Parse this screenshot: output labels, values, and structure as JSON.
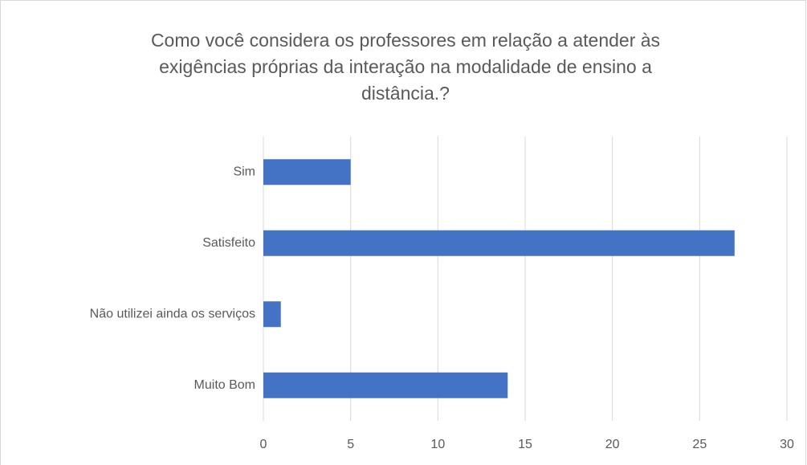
{
  "chart_data": {
    "type": "bar",
    "orientation": "horizontal",
    "title": "Como você considera os professores em relação a  atender às exigências próprias da interação na modalidade de ensino a distância.?",
    "categories": [
      "Sim",
      "Satisfeito",
      "Não utilizei ainda os serviços",
      "Muito Bom"
    ],
    "values": [
      5,
      27,
      1,
      14
    ],
    "color": "#4472c4",
    "xlim": [
      0,
      30
    ],
    "xticks": [
      0,
      5,
      10,
      15,
      20,
      25,
      30
    ],
    "grid": true
  }
}
